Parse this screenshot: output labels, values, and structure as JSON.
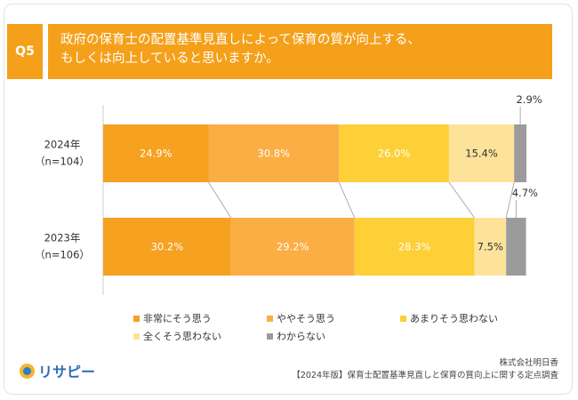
{
  "question": {
    "badge": "Q5",
    "line1": "政府の保育士の配置基準見直しによって保育の質が向上する、",
    "line2": "もしくは向上していると思いますか。"
  },
  "chart_data": {
    "type": "bar",
    "orientation": "horizontal",
    "stacked": true,
    "percent": true,
    "categories": [
      {
        "year": "2024年",
        "n": "（n=104）"
      },
      {
        "year": "2023年",
        "n": "（n=106）"
      }
    ],
    "series": [
      {
        "name": "非常にそう思う",
        "color": "#f6a11f",
        "values": [
          24.9,
          30.2
        ]
      },
      {
        "name": "ややそう思う",
        "color": "#fbae44",
        "values": [
          30.8,
          29.2
        ]
      },
      {
        "name": "あまりそう思わない",
        "color": "#fdd037",
        "values": [
          26.0,
          28.3
        ]
      },
      {
        "name": "全くそう思わない",
        "color": "#fde39a",
        "values": [
          15.4,
          7.5
        ]
      },
      {
        "name": "わからない",
        "color": "#9b9b9b",
        "values": [
          2.9,
          4.7
        ]
      }
    ],
    "data_labels": [
      [
        "24.9%",
        "30.8%",
        "26.0%",
        "15.4%",
        "2.9%"
      ],
      [
        "30.2%",
        "29.2%",
        "28.3%",
        "7.5%",
        "4.7%"
      ]
    ],
    "xlim": [
      0,
      100
    ],
    "grid": false,
    "legend_position": "bottom"
  },
  "source": {
    "company": "株式会社明日香",
    "title": "【2024年版】保育士配置基準見直しと保育の質向上に関する定点調査"
  },
  "logo": {
    "text": "リサピー"
  }
}
